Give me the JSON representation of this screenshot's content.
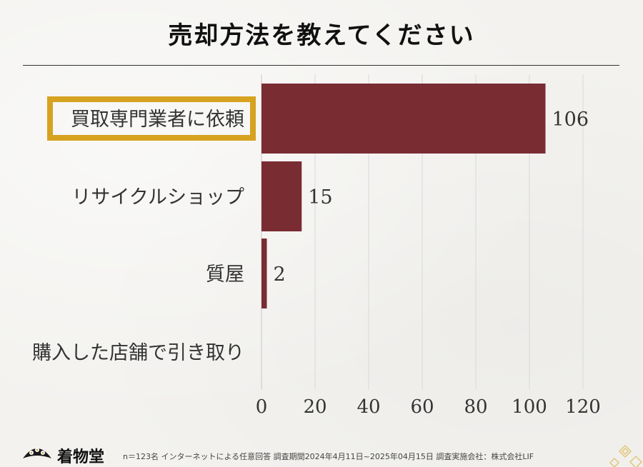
{
  "title": "売却方法を教えてください",
  "chart_data": {
    "type": "bar",
    "orientation": "horizontal",
    "categories": [
      "買取専門業者に依頼",
      "リサイクルショップ",
      "質屋",
      "購入した店舗で引き取り"
    ],
    "values": [
      106,
      15,
      2,
      0
    ],
    "data_labels": [
      "106",
      "15",
      "2",
      ""
    ],
    "highlighted_category": "買取専門業者に依頼",
    "xlim": [
      0,
      120
    ],
    "xticks": [
      0,
      20,
      40,
      60,
      80,
      100,
      120
    ],
    "grid": true
  },
  "colors": {
    "bar": "#7a2c33",
    "highlight_box": "#d6a220",
    "grid": "#d9d9d9"
  },
  "footer": {
    "brand": "着物堂",
    "note": "n＝123名 インターネットによる任意回答 調査期間2024年4月11日~2025年04月15日 調査実施会社：株式会社LIF"
  },
  "icons": {
    "logo": "folding-fan-icon",
    "corner": "floral-corner-icon"
  }
}
